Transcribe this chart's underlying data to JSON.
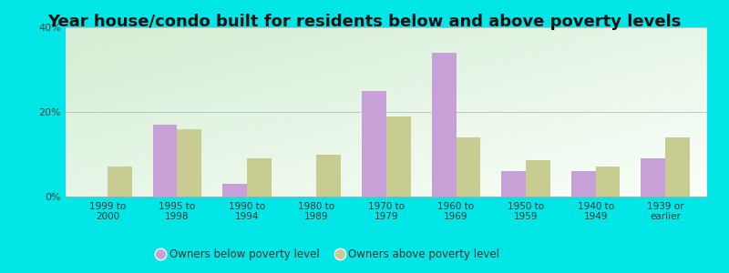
{
  "title": "Year house/condo built for residents below and above poverty levels",
  "categories": [
    "1999 to\n2000",
    "1995 to\n1998",
    "1990 to\n1994",
    "1980 to\n1989",
    "1970 to\n1979",
    "1960 to\n1969",
    "1950 to\n1959",
    "1940 to\n1949",
    "1939 or\nearlier"
  ],
  "below_poverty": [
    0.0,
    17.0,
    3.0,
    0.0,
    25.0,
    34.0,
    6.0,
    6.0,
    9.0
  ],
  "above_poverty": [
    7.0,
    16.0,
    9.0,
    10.0,
    19.0,
    14.0,
    8.5,
    7.0,
    14.0
  ],
  "below_color": "#c8a0d8",
  "above_color": "#c8cc90",
  "ylim": [
    0,
    40
  ],
  "yticks": [
    0,
    20,
    40
  ],
  "ytick_labels": [
    "0%",
    "20%",
    "40%"
  ],
  "background_outer": "#00e5e5",
  "background_gradient_topleft": "#d4ecd4",
  "background_gradient_bottomright": "#f5fff5",
  "background_white_zone": "#f0faf0",
  "grid_color": "#bbbbbb",
  "title_fontsize": 13,
  "legend_below_label": "Owners below poverty level",
  "legend_above_label": "Owners above poverty level",
  "bar_width": 0.35
}
